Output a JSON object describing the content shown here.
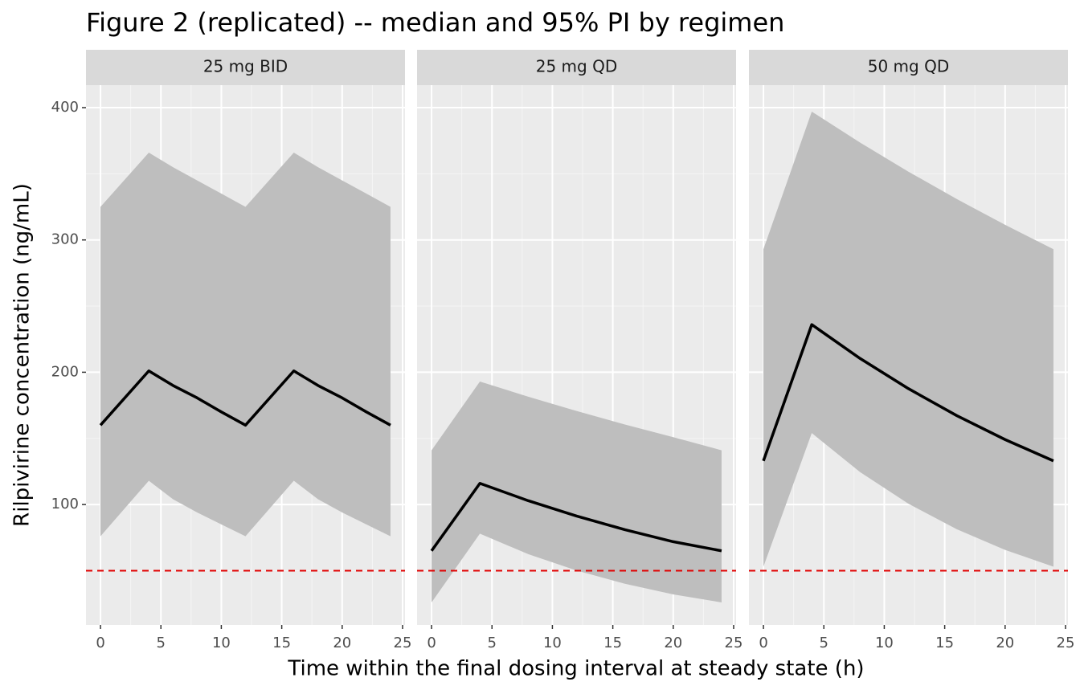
{
  "chart_data": {
    "type": "line",
    "title": "Figure 2 (replicated) -- median and 95% PI by regimen",
    "xlabel": "Time within the final dosing interval at steady state (h)",
    "ylabel": "Rilpivirine concentration (ng/mL)",
    "xlim": [
      -1.2,
      25.2
    ],
    "xticks": [
      0,
      5,
      10,
      15,
      20,
      25
    ],
    "ylim": [
      9,
      417
    ],
    "yticks": [
      100,
      200,
      300,
      400
    ],
    "grid": true,
    "line_color": "#000000",
    "band_color": "#bebebe",
    "hline": {
      "value": 50,
      "color": "#e00000"
    },
    "panels": [
      {
        "title": "25 mg BID",
        "x": [
          0,
          4,
          6,
          8,
          10,
          12,
          16,
          18,
          20,
          22,
          24
        ],
        "median": [
          160,
          201,
          190,
          180.6,
          170,
          160,
          201,
          190,
          180.6,
          170,
          160
        ],
        "upper": [
          325,
          366,
          355,
          345,
          335,
          325,
          366,
          355,
          345,
          335,
          325
        ],
        "lower": [
          76,
          118,
          104,
          94,
          85,
          76,
          118,
          104,
          94,
          85,
          76
        ]
      },
      {
        "title": "25 mg QD",
        "x": [
          0,
          4,
          8,
          12,
          16,
          20,
          24
        ],
        "median": [
          65,
          116,
          102.9,
          91.3,
          81,
          71.9,
          65
        ],
        "upper": [
          141,
          193,
          181.5,
          170.7,
          160.5,
          150.9,
          141
        ],
        "lower": [
          26,
          78,
          62.5,
          50.1,
          40.1,
          32.1,
          26
        ]
      },
      {
        "title": "50 mg QD",
        "x": [
          0,
          4,
          8,
          12,
          16,
          20,
          24
        ],
        "median": [
          133,
          236,
          210.4,
          187.6,
          167.2,
          149.1,
          133
        ],
        "upper": [
          293,
          397,
          373.6,
          351.6,
          330.9,
          311.4,
          293
        ],
        "lower": [
          53,
          154,
          124.5,
          100.6,
          81.3,
          65.7,
          53
        ]
      }
    ]
  }
}
